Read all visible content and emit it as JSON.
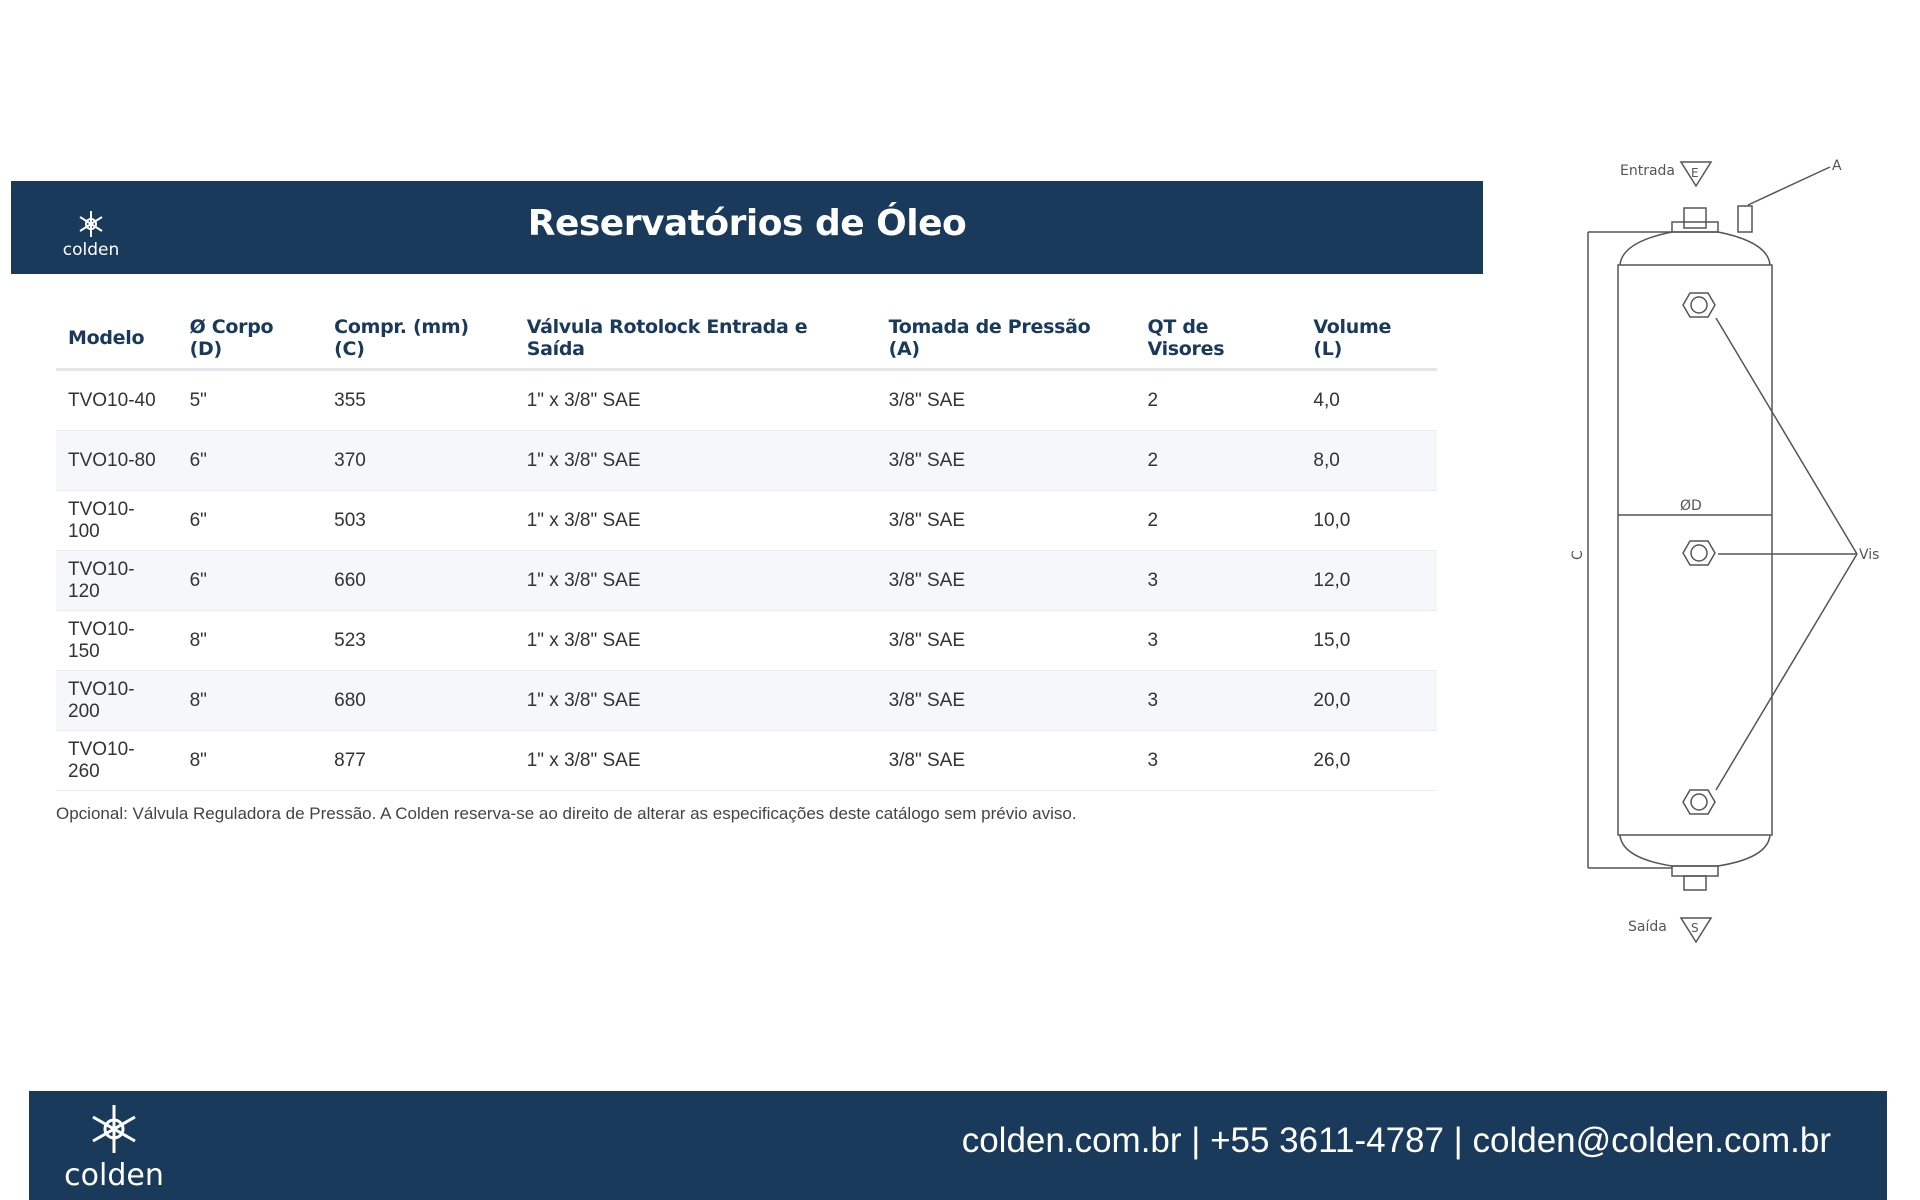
{
  "brand": {
    "name": "colden",
    "logo_icon": "snowflake-icon"
  },
  "header": {
    "title": "Reservatórios de Óleo"
  },
  "table": {
    "columns": [
      "Modelo",
      "Ø Corpo (D)",
      "Compr. (mm) (C)",
      "Válvula Rotolock Entrada e Saída",
      "Tomada de Pressão (A)",
      "QT de Visores",
      "Volume (L)"
    ],
    "rows": [
      [
        "TVO10-40",
        "5\"",
        "355",
        "1\" x 3/8\" SAE",
        "3/8\" SAE",
        "2",
        "4,0"
      ],
      [
        "TVO10-80",
        "6\"",
        "370",
        "1\" x 3/8\" SAE",
        "3/8\" SAE",
        "2",
        "8,0"
      ],
      [
        "TVO10-100",
        "6\"",
        "503",
        "1\" x 3/8\" SAE",
        "3/8\" SAE",
        "2",
        "10,0"
      ],
      [
        "TVO10-120",
        "6\"",
        "660",
        "1\" x 3/8\" SAE",
        "3/8\" SAE",
        "3",
        "12,0"
      ],
      [
        "TVO10-150",
        "8\"",
        "523",
        "1\" x 3/8\" SAE",
        "3/8\" SAE",
        "3",
        "15,0"
      ],
      [
        "TVO10-200",
        "8\"",
        "680",
        "1\" x 3/8\" SAE",
        "3/8\" SAE",
        "3",
        "20,0"
      ],
      [
        "TVO10-260",
        "8\"",
        "877",
        "1\" x 3/8\" SAE",
        "3/8\" SAE",
        "3",
        "26,0"
      ]
    ]
  },
  "note": "Opcional: Válvula Reguladora de Pressão. A Colden reserva-se ao direito de alterar as especificações deste catálogo sem prévio aviso.",
  "diagram": {
    "inlet": "Entrada",
    "inlet_mark": "E",
    "outlet": "Saída",
    "outlet_mark": "S",
    "pressure_port": "A",
    "length": "C",
    "diameter": "ØD",
    "sight_glass": "Visor"
  },
  "footer": {
    "contact": "colden.com.br |  +55 3611-4787 | colden@colden.com.br"
  },
  "colors": {
    "brand": "#193a5b",
    "header_text": "#ffffff",
    "table_header_text": "#193a5b",
    "alt_row": "#f5f7fa"
  }
}
